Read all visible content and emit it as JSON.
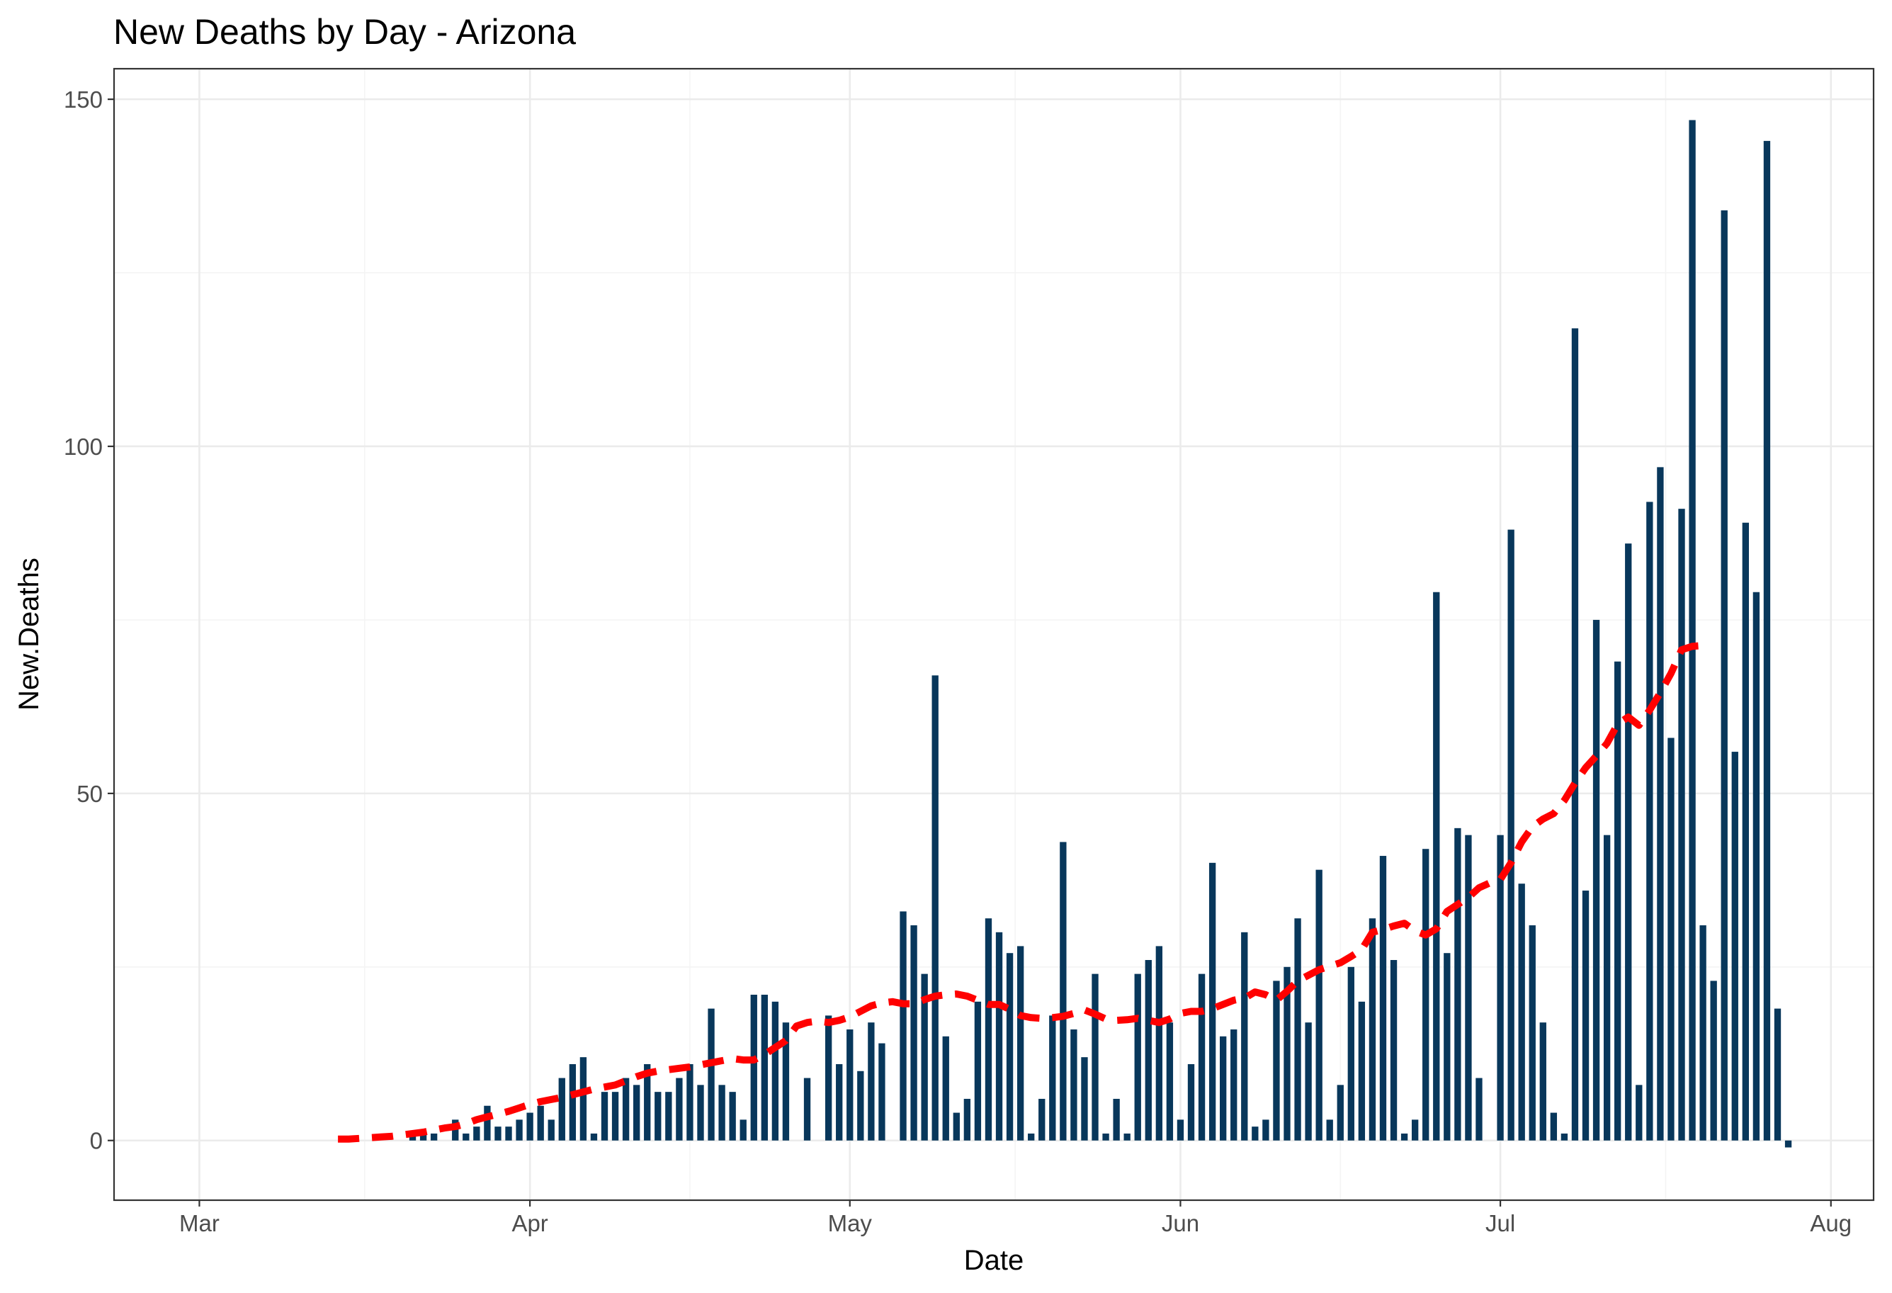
{
  "chart_data": {
    "type": "bar",
    "title": "New Deaths by Day - Arizona",
    "xlabel": "Date",
    "ylabel": "New.Deaths",
    "ylim": [
      -8.6,
      154.4
    ],
    "xlim": [
      "2020-02-22",
      "2020-08-05"
    ],
    "y_ticks": [
      0,
      50,
      100,
      150
    ],
    "y_tick_labels": [
      "0",
      "50",
      "100",
      "150"
    ],
    "x_ticks": [
      "2020-03-01",
      "2020-04-01",
      "2020-05-01",
      "2020-06-01",
      "2020-07-01",
      "2020-08-01"
    ],
    "x_tick_labels": [
      "Mar",
      "Apr",
      "May",
      "Jun",
      "Jul",
      "Aug"
    ],
    "grid": true,
    "legend": "none",
    "colors": {
      "bars": "#08375b",
      "rolling_average": "#ff0000",
      "grid_major": "#ebebeb",
      "grid_minor": "#f4f4f4",
      "panel_border": "#333333",
      "tick_label": "#4d4d4d"
    },
    "bars": {
      "start_date": "2020-03-01",
      "values": [
        0,
        0,
        0,
        0,
        0,
        0,
        0,
        0,
        0,
        0,
        0,
        0,
        0,
        0,
        0,
        0,
        0,
        0,
        0,
        0,
        1,
        1,
        1,
        0,
        3,
        1,
        2,
        5,
        2,
        2,
        3,
        4,
        5,
        3,
        9,
        11,
        12,
        1,
        7,
        7,
        9,
        8,
        11,
        7,
        7,
        9,
        11,
        8,
        19,
        8,
        7,
        3,
        21,
        21,
        20,
        17,
        0,
        9,
        0,
        18,
        11,
        16,
        10,
        17,
        14,
        0,
        33,
        31,
        24,
        67,
        15,
        4,
        6,
        20,
        32,
        30,
        27,
        28,
        1,
        6,
        18,
        43,
        16,
        12,
        24,
        1,
        6,
        1,
        24,
        26,
        28,
        17,
        3,
        11,
        24,
        40,
        15,
        16,
        30,
        2,
        3,
        23,
        25,
        32,
        17,
        39,
        3,
        8,
        25,
        20,
        32,
        41,
        26,
        1,
        3,
        42,
        79,
        27,
        45,
        44,
        9,
        0,
        44,
        88,
        37,
        31,
        17,
        4,
        1,
        117,
        36,
        75,
        44,
        69,
        86,
        8,
        92,
        97,
        58,
        91,
        147,
        31,
        23,
        134,
        56,
        89,
        79,
        144,
        19,
        -1
      ]
    },
    "rolling_average": {
      "start_date": "2020-03-14",
      "values": [
        0.2,
        0.2,
        0.3,
        0.4,
        0.5,
        0.6,
        0.8,
        1.0,
        1.2,
        1.5,
        1.8,
        2.0,
        2.4,
        3.0,
        3.4,
        3.8,
        4.2,
        4.7,
        5.2,
        5.6,
        5.9,
        6.2,
        6.6,
        7.0,
        7.4,
        7.7,
        8.0,
        8.6,
        9.2,
        9.7,
        10.0,
        10.2,
        10.4,
        10.6,
        10.9,
        11.2,
        11.5,
        11.8,
        11.6,
        11.6,
        12.4,
        13.4,
        14.4,
        16.5,
        17.0,
        17.2,
        17.0,
        17.3,
        17.8,
        18.6,
        19.4,
        19.8,
        20.0,
        19.7,
        19.7,
        20.3,
        20.8,
        21.0,
        21.1,
        20.8,
        20.2,
        19.6,
        19.6,
        18.9,
        18.0,
        17.7,
        17.6,
        17.7,
        17.9,
        18.3,
        18.8,
        18.2,
        17.5,
        17.3,
        17.4,
        17.6,
        17.3,
        17.0,
        17.5,
        18.3,
        18.6,
        18.6,
        19.0,
        19.6,
        20.2,
        20.5,
        21.4,
        21.0,
        20.2,
        21.5,
        23.0,
        23.8,
        24.6,
        25.1,
        25.6,
        26.5,
        27.5,
        30.0,
        30.4,
        30.9,
        31.3,
        30.2,
        29.6,
        30.5,
        33.0,
        34.0,
        35.0,
        36.4,
        37.1,
        37.6,
        40.0,
        43.0,
        45.2,
        46.3,
        47.1,
        49.0,
        51.5,
        53.7,
        55.4,
        57.2,
        60.0,
        61.0,
        59.8,
        62.0,
        64.5,
        67.3,
        70.7,
        71.2,
        71.3
      ]
    }
  }
}
